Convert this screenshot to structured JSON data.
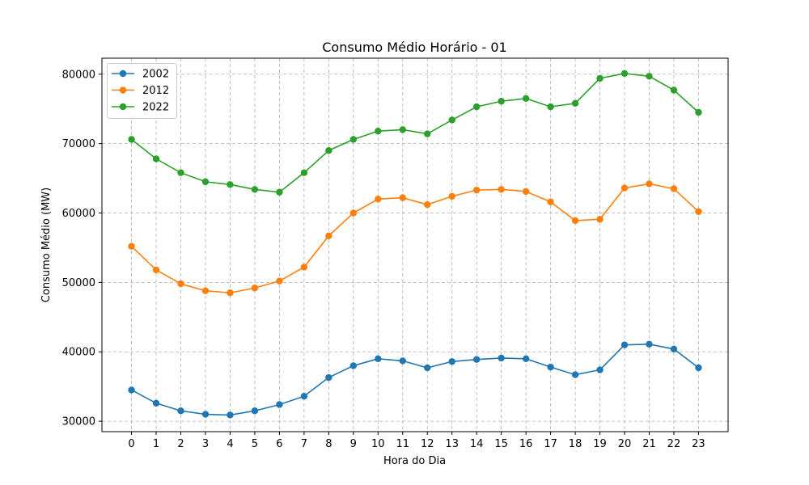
{
  "chart_data": {
    "type": "line",
    "title": "Consumo Médio Horário - 01",
    "xlabel": "Hora do Dia",
    "ylabel": "Consumo Médio (MW)",
    "x": [
      0,
      1,
      2,
      3,
      4,
      5,
      6,
      7,
      8,
      9,
      10,
      11,
      12,
      13,
      14,
      15,
      16,
      17,
      18,
      19,
      20,
      21,
      22,
      23
    ],
    "xlim": [
      -1.2,
      24.2
    ],
    "ylim": [
      28500,
      82300
    ],
    "yticks": [
      30000,
      40000,
      50000,
      60000,
      70000,
      80000
    ],
    "grid": true,
    "legend_position": "top-left",
    "series": [
      {
        "name": "2002",
        "color": "#1f77b4",
        "values": [
          34500,
          32600,
          31500,
          31000,
          30900,
          31500,
          32400,
          33600,
          36300,
          38000,
          39000,
          38700,
          37700,
          38600,
          38900,
          39100,
          39000,
          37800,
          36700,
          37400,
          41000,
          41100,
          40400,
          37700
        ]
      },
      {
        "name": "2012",
        "color": "#ff7f0e",
        "values": [
          55200,
          51800,
          49800,
          48800,
          48500,
          49200,
          50200,
          52200,
          56700,
          60000,
          62000,
          62200,
          61200,
          62400,
          63300,
          63400,
          63100,
          61600,
          58900,
          59100,
          63600,
          64200,
          63500,
          60200
        ]
      },
      {
        "name": "2022",
        "color": "#2ca02c",
        "values": [
          70600,
          67800,
          65800,
          64500,
          64100,
          63400,
          63000,
          65800,
          69000,
          70600,
          71800,
          72000,
          71400,
          73400,
          75300,
          76100,
          76500,
          75300,
          75800,
          79400,
          80100,
          79700,
          77700,
          74500
        ]
      }
    ]
  }
}
